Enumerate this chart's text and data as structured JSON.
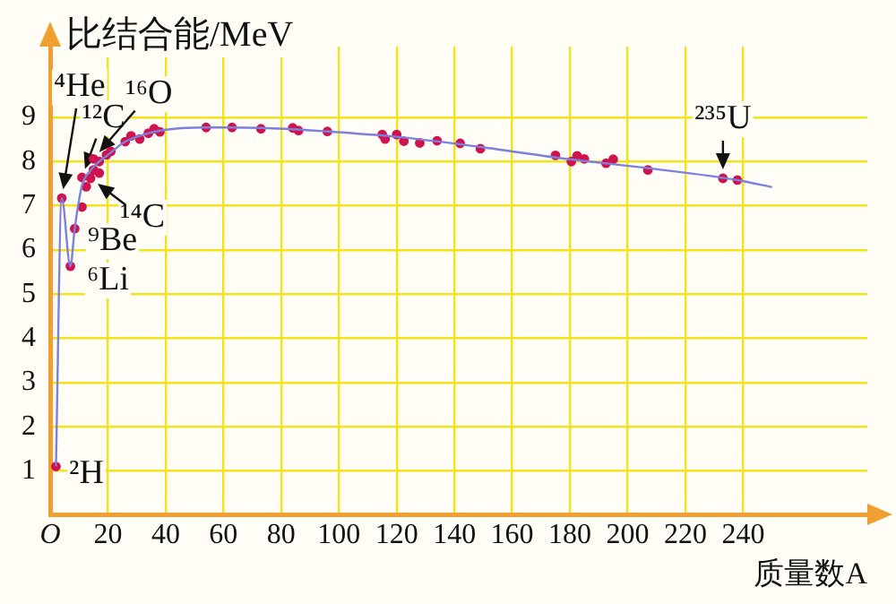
{
  "chart_data": {
    "type": "scatter",
    "xlabel": "质量数A",
    "ylabel": "比结合能/MeV",
    "xlim": [
      0,
      283
    ],
    "ylim": [
      0,
      10.6
    ],
    "xticks": [
      {
        "value": 0,
        "label": "O"
      },
      20,
      40,
      60,
      80,
      100,
      120,
      140,
      160,
      180,
      200,
      220,
      240
    ],
    "yticks": [
      1,
      2,
      3,
      4,
      5,
      6,
      7,
      8,
      9
    ],
    "grid": true,
    "legend": false,
    "series": [
      {
        "type": "line",
        "color": "#7b80dc",
        "marker": "none",
        "x": [
          2,
          4,
          7,
          8.5,
          11,
          14,
          17,
          20,
          26,
          31,
          38,
          54,
          73,
          96,
          120,
          149,
          180,
          207,
          238,
          250
        ],
        "values": [
          1.1,
          7.17,
          5.63,
          6.48,
          7.45,
          7.8,
          8.0,
          8.15,
          8.45,
          8.58,
          8.7,
          8.77,
          8.76,
          8.68,
          8.56,
          8.33,
          8.05,
          7.85,
          7.58,
          7.42
        ]
      },
      {
        "type": "scatter",
        "color": "#d0124e",
        "marker": "circle",
        "x": [
          2,
          4,
          7,
          8.5,
          11,
          11,
          12.5,
          14,
          15,
          15,
          17,
          17,
          19.5,
          21,
          26,
          28,
          31,
          34,
          36,
          38,
          54,
          63,
          73,
          84,
          86,
          96,
          115,
          116,
          120,
          122.5,
          128,
          134,
          142,
          149,
          175,
          180.5,
          182.5,
          185,
          192.5,
          195,
          207,
          233,
          238
        ],
        "values": [
          1.1,
          7.17,
          5.63,
          6.48,
          6.97,
          7.64,
          7.43,
          7.62,
          7.81,
          8.06,
          7.74,
          8.0,
          8.15,
          8.23,
          8.45,
          8.58,
          8.51,
          8.64,
          8.74,
          8.67,
          8.77,
          8.77,
          8.74,
          8.76,
          8.7,
          8.68,
          8.61,
          8.51,
          8.61,
          8.46,
          8.42,
          8.47,
          8.41,
          8.29,
          8.14,
          8.0,
          8.13,
          8.06,
          7.96,
          8.05,
          7.81,
          7.62,
          7.58
        ]
      }
    ],
    "annotations": [
      {
        "text": "²H",
        "x": 2,
        "y": 1.1
      },
      {
        "text": "⁴He",
        "x": 4,
        "y": 7.17
      },
      {
        "text": "¹²C",
        "x": 11,
        "y": 7.64
      },
      {
        "text": "¹⁶O",
        "x": 15,
        "y": 8.06
      },
      {
        "text": "¹⁴C",
        "x": 14,
        "y": 7.62
      },
      {
        "text": "⁹Be",
        "x": 8.5,
        "y": 6.48
      },
      {
        "text": "⁶Li",
        "x": 7,
        "y": 5.63
      },
      {
        "text": "²³⁵U",
        "x": 233,
        "y": 7.62
      }
    ]
  }
}
